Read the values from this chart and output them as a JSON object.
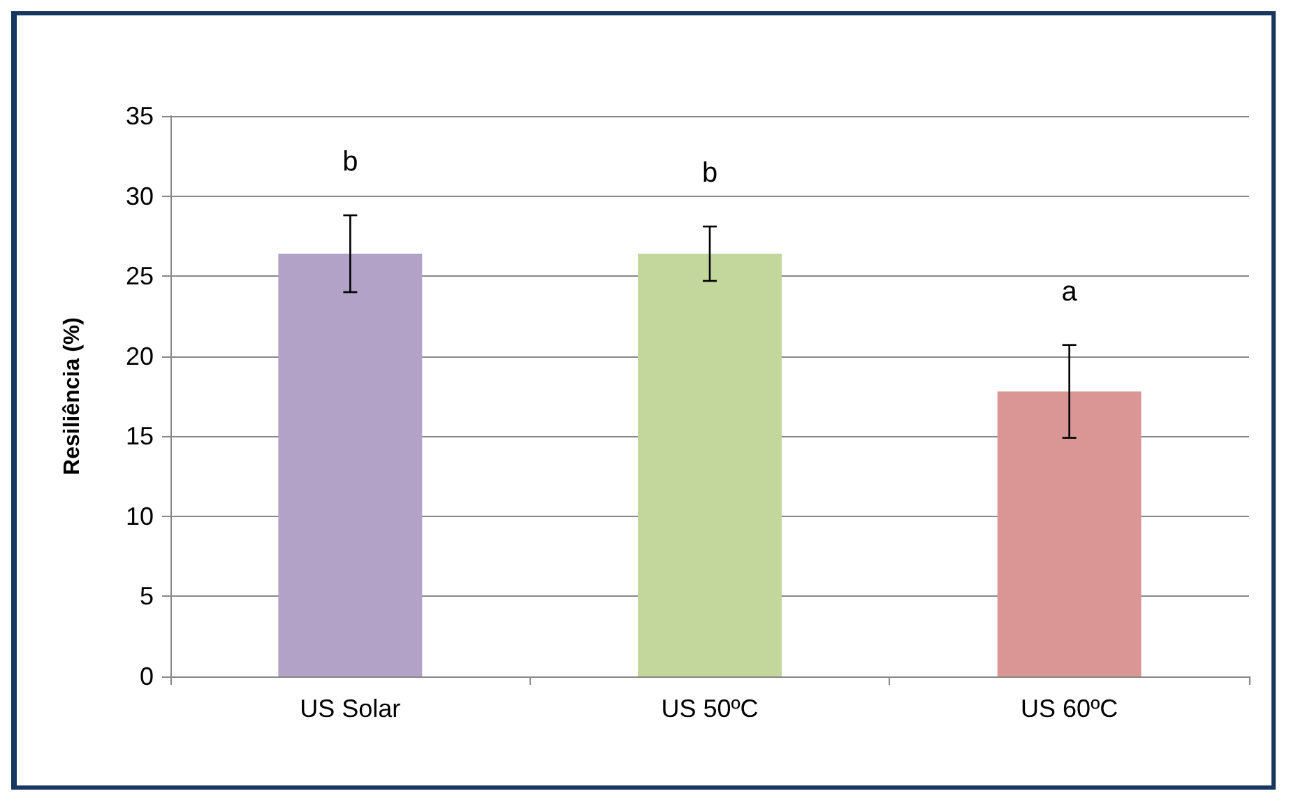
{
  "chart_data": {
    "type": "bar",
    "ylabel": "Resiliência (%)",
    "categories": [
      "US Solar",
      "US 50ºC",
      "US 60ºC"
    ],
    "values": [
      26.4,
      26.4,
      17.8
    ],
    "colors": [
      "#b3a2c7",
      "#c3d69b",
      "#d99694"
    ],
    "errors": [
      2.4,
      1.7,
      2.9
    ],
    "ylim": [
      0,
      35
    ],
    "yticks": [
      0,
      5,
      10,
      15,
      20,
      25,
      30,
      35
    ],
    "grid": "y",
    "annotations": [
      "b",
      "b",
      "a"
    ]
  }
}
